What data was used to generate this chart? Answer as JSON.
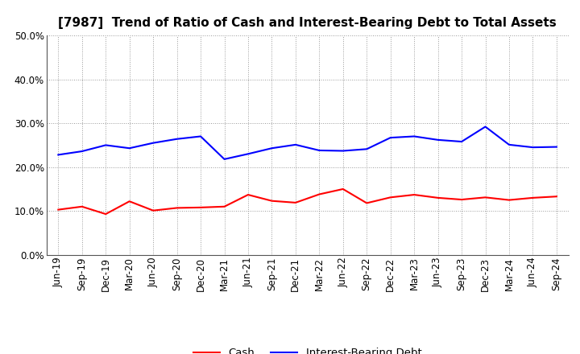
{
  "title": "[7987]  Trend of Ratio of Cash and Interest-Bearing Debt to Total Assets",
  "x_labels": [
    "Jun-19",
    "Sep-19",
    "Dec-19",
    "Mar-20",
    "Jun-20",
    "Sep-20",
    "Dec-20",
    "Mar-21",
    "Jun-21",
    "Sep-21",
    "Dec-21",
    "Mar-22",
    "Jun-22",
    "Sep-22",
    "Dec-22",
    "Mar-23",
    "Jun-23",
    "Sep-23",
    "Dec-23",
    "Mar-24",
    "Jun-24",
    "Sep-24"
  ],
  "cash": [
    0.103,
    0.11,
    0.093,
    0.122,
    0.101,
    0.107,
    0.108,
    0.11,
    0.137,
    0.123,
    0.119,
    0.138,
    0.15,
    0.118,
    0.131,
    0.137,
    0.13,
    0.126,
    0.131,
    0.125,
    0.13,
    0.133
  ],
  "interest_bearing_debt": [
    0.228,
    0.236,
    0.25,
    0.243,
    0.255,
    0.264,
    0.27,
    0.218,
    0.23,
    0.243,
    0.251,
    0.238,
    0.237,
    0.241,
    0.267,
    0.27,
    0.262,
    0.258,
    0.292,
    0.251,
    0.245,
    0.246
  ],
  "cash_color": "#ff0000",
  "debt_color": "#0000ff",
  "background_color": "#ffffff",
  "grid_color": "#999999",
  "ylim": [
    0.0,
    0.5
  ],
  "yticks": [
    0.0,
    0.1,
    0.2,
    0.3,
    0.4,
    0.5
  ],
  "legend_cash": "Cash",
  "legend_debt": "Interest-Bearing Debt",
  "title_fontsize": 11,
  "axis_fontsize": 8.5
}
